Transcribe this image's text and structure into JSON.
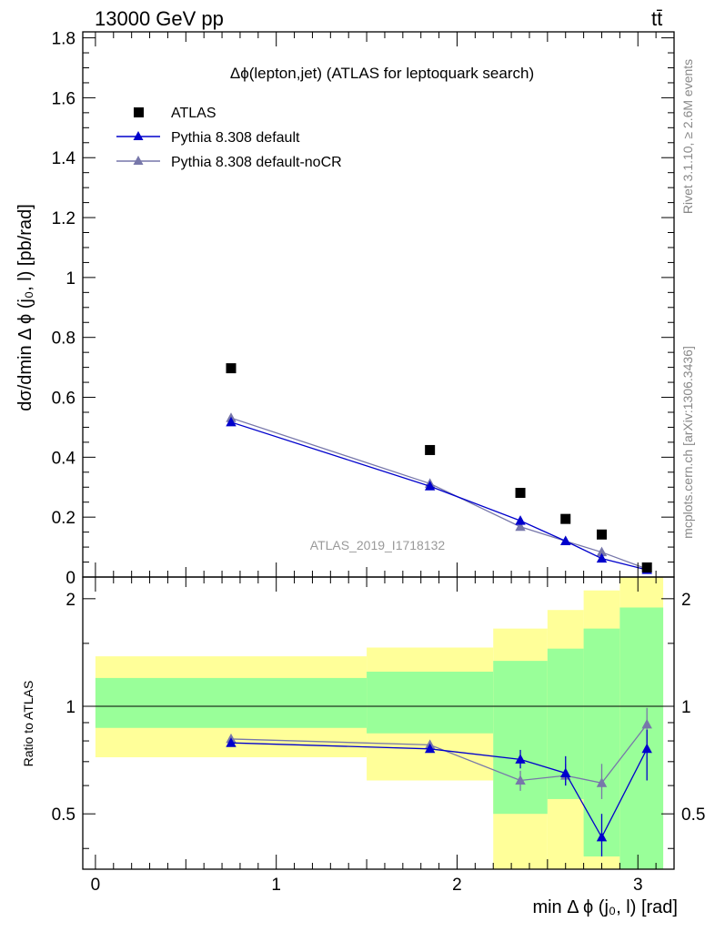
{
  "header": {
    "energy_label": "13000 GeV pp",
    "process_label": "tt̄"
  },
  "side_labels": {
    "rivet": "Rivet 3.1.10, ≥ 2.6M events",
    "mcplots": "mcplots.cern.ch [arXiv:1306.3436]"
  },
  "chart_data": [
    {
      "type": "scatter",
      "panel": "main",
      "title": "Δϕ(lepton,jet) (ATLAS for leptoquark search)",
      "analysis_label": "ATLAS_2019_I1718132",
      "ylabel": "dσ/dmin Δ ϕ (j₀, l) [pb/rad]",
      "xlim": [
        -0.07,
        3.2
      ],
      "ylim": [
        0,
        1.82
      ],
      "yticks": [
        0,
        0.2,
        0.4,
        0.6,
        0.8,
        1,
        1.2,
        1.4,
        1.6,
        1.8
      ],
      "ytick_labels": [
        "0",
        "0.2",
        "0.4",
        "0.6",
        "0.8",
        "1",
        "1.2",
        "1.4",
        "1.6",
        "1.8"
      ],
      "legend_position": "top-left",
      "series": [
        {
          "name": "ATLAS",
          "marker": "square",
          "color": "#000000",
          "x": [
            0.75,
            1.85,
            2.35,
            2.6,
            2.8,
            3.05
          ],
          "y": [
            0.697,
            0.424,
            0.281,
            0.194,
            0.142,
            0.032
          ]
        },
        {
          "name": "Pythia 8.308 default",
          "marker": "triangle",
          "color": "#0000cc",
          "x": [
            0.75,
            1.85,
            2.35,
            2.6,
            2.8,
            3.05
          ],
          "y": [
            0.517,
            0.303,
            0.188,
            0.12,
            0.062,
            0.024
          ]
        },
        {
          "name": "Pythia 8.308 default-noCR",
          "marker": "triangle",
          "color": "#7777aa",
          "x": [
            0.75,
            1.85,
            2.35,
            2.6,
            2.8,
            3.05
          ],
          "y": [
            0.531,
            0.312,
            0.168,
            0.12,
            0.083,
            0.027
          ]
        }
      ]
    },
    {
      "type": "line",
      "panel": "ratio",
      "xlabel": "min Δ ϕ (j₀, l) [rad]",
      "ylabel": "Ratio to ATLAS",
      "xlim": [
        -0.07,
        3.2
      ],
      "ylim": [
        0.35,
        2.3
      ],
      "log_y": true,
      "yticks": [
        0.5,
        1,
        2
      ],
      "ytick_labels": [
        "0.5",
        "1",
        "2"
      ],
      "xticks": [
        0,
        1,
        2,
        3
      ],
      "xtick_labels": [
        "0",
        "1",
        "2",
        "3"
      ],
      "reference_line": 1,
      "bands": {
        "bin_edges": [
          0,
          1.5,
          2.2,
          2.5,
          2.7,
          2.9,
          3.14
        ],
        "yellow_low": [
          0.72,
          0.62,
          0.25,
          0.3,
          0.25,
          0.2
        ],
        "yellow_high": [
          1.38,
          1.46,
          1.65,
          1.86,
          2.11,
          2.4
        ],
        "yellow_color": "#ffff99",
        "green_low": [
          0.87,
          0.84,
          0.5,
          0.55,
          0.38,
          0.3
        ],
        "green_high": [
          1.2,
          1.25,
          1.34,
          1.45,
          1.65,
          1.89
        ],
        "green_color": "#99ff99"
      },
      "series": [
        {
          "name": "Pythia 8.308 default",
          "color": "#0000cc",
          "x": [
            0.75,
            1.85,
            2.35,
            2.6,
            2.8,
            3.05
          ],
          "y": [
            0.79,
            0.76,
            0.71,
            0.65,
            0.43,
            0.76
          ],
          "err_low": [
            0.78,
            0.75,
            0.67,
            0.6,
            0.38,
            0.62
          ],
          "err_high": [
            0.8,
            0.77,
            0.755,
            0.725,
            0.5,
            0.86
          ]
        },
        {
          "name": "Pythia 8.308 default-noCR",
          "color": "#7777aa",
          "x": [
            0.75,
            1.85,
            2.35,
            2.6,
            2.8,
            3.05
          ],
          "y": [
            0.81,
            0.78,
            0.62,
            0.64,
            0.61,
            0.89
          ],
          "err_low": [
            0.8,
            0.77,
            0.58,
            0.6,
            0.55,
            0.78
          ],
          "err_high": [
            0.82,
            0.79,
            0.66,
            0.69,
            0.69,
            0.99
          ]
        }
      ]
    }
  ]
}
